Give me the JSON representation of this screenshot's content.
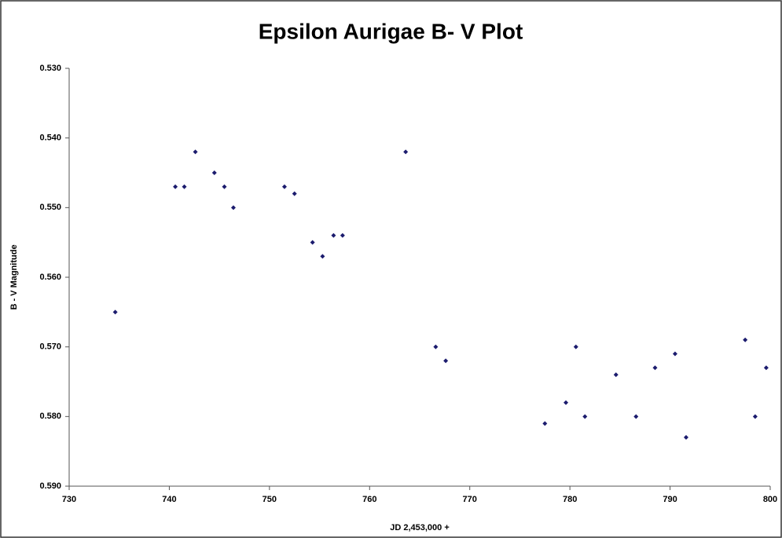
{
  "chart_data": {
    "type": "scatter",
    "title": "Epsilon Aurigae B- V Plot",
    "x_label": "JD 2,453,000 +",
    "y_label": "B - V Magnitude",
    "xlim": [
      730,
      800
    ],
    "xticks": [
      730,
      740,
      750,
      760,
      770,
      780,
      790,
      800
    ],
    "ylim": [
      0.59,
      0.53
    ],
    "y_inverted": true,
    "yticks": [
      {
        "value": 0.53,
        "label": "0.530"
      },
      {
        "value": 0.54,
        "label": "0.540"
      },
      {
        "value": 0.55,
        "label": "0.550"
      },
      {
        "value": 0.56,
        "label": "0.560"
      },
      {
        "value": 0.57,
        "label": "0.570"
      },
      {
        "value": 0.58,
        "label": "0.580"
      },
      {
        "value": 0.59,
        "label": "0.590"
      }
    ],
    "color": "#1c1c6e",
    "x": [
      734.6,
      740.6,
      741.5,
      742.6,
      744.5,
      745.5,
      746.4,
      751.5,
      752.5,
      754.3,
      755.3,
      756.4,
      757.3,
      763.6,
      766.6,
      767.6,
      777.5,
      779.6,
      780.6,
      781.5,
      784.6,
      786.6,
      788.5,
      790.5,
      791.6,
      797.5,
      798.5,
      799.6
    ],
    "values": [
      0.565,
      0.547,
      0.547,
      0.542,
      0.545,
      0.547,
      0.55,
      0.547,
      0.548,
      0.555,
      0.557,
      0.554,
      0.554,
      0.542,
      0.57,
      0.572,
      0.581,
      0.578,
      0.57,
      0.58,
      0.574,
      0.58,
      0.573,
      0.571,
      0.583,
      0.569,
      0.58,
      0.573
    ]
  }
}
